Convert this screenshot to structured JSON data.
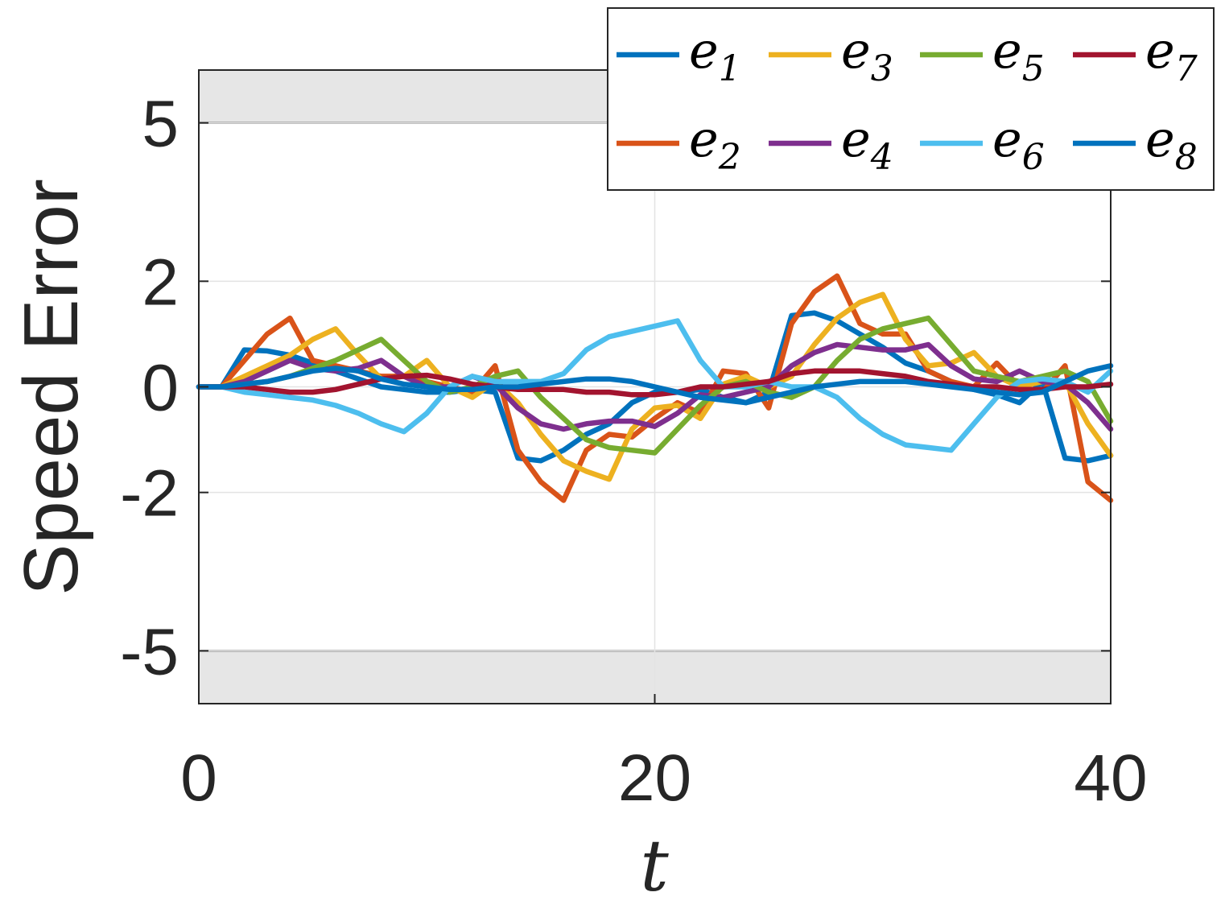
{
  "chart_data": {
    "type": "line",
    "title": "",
    "xlabel": "t",
    "ylabel": "Speed Error",
    "xlim": [
      0,
      40
    ],
    "ylim": [
      -6,
      6
    ],
    "xticks": [
      0,
      20,
      40
    ],
    "yticks": [
      -5,
      -2,
      0,
      2,
      5
    ],
    "ytick_labels": [
      "-5",
      "-2",
      "0",
      "2",
      "5"
    ],
    "grid": true,
    "legend_placement": "top-right",
    "shaded_bands": [
      {
        "from": 5,
        "to": 6,
        "color": "#e6e6e6"
      },
      {
        "from": -6,
        "to": -5,
        "color": "#e6e6e6"
      }
    ],
    "x": [
      0,
      1,
      2,
      3,
      4,
      5,
      6,
      7,
      8,
      9,
      10,
      11,
      12,
      13,
      14,
      15,
      16,
      17,
      18,
      19,
      20,
      21,
      22,
      23,
      24,
      25,
      26,
      27,
      28,
      29,
      30,
      31,
      32,
      33,
      34,
      35,
      36,
      37,
      38,
      39,
      40
    ],
    "series": [
      {
        "name": "e",
        "subscript": "1",
        "color": "#0072BD",
        "values": [
          0,
          0,
          0.7,
          0.68,
          0.6,
          0.45,
          0.3,
          0.15,
          0,
          -0.05,
          -0.1,
          -0.1,
          -0.05,
          -0.1,
          -1.35,
          -1.4,
          -1.2,
          -0.9,
          -0.7,
          -0.3,
          -0.1,
          -0.1,
          -0.05,
          -0.2,
          -0.3,
          -0.1,
          1.35,
          1.4,
          1.25,
          1.0,
          0.75,
          0.45,
          0.3,
          0.1,
          -0.05,
          -0.15,
          -0.3,
          0.1,
          -1.35,
          -1.4,
          -1.3
        ]
      },
      {
        "name": "e",
        "subscript": "2",
        "color": "#D95319",
        "values": [
          0,
          0,
          0.5,
          1.0,
          1.3,
          0.5,
          0.4,
          0.3,
          0.2,
          0.2,
          0.1,
          0,
          -0.1,
          0.4,
          -1.2,
          -1.8,
          -2.15,
          -1.2,
          -0.9,
          -0.95,
          -0.6,
          -0.3,
          -0.5,
          0.3,
          0.25,
          -0.4,
          1.2,
          1.8,
          2.1,
          1.2,
          1.0,
          1.0,
          0.3,
          0.1,
          0,
          0.45,
          0,
          -0.1,
          0.4,
          -1.8,
          -2.15
        ]
      },
      {
        "name": "e",
        "subscript": "3",
        "color": "#EDB120",
        "values": [
          0,
          0,
          0.2,
          0.4,
          0.6,
          0.9,
          1.1,
          0.6,
          0.15,
          0.2,
          0.5,
          0,
          -0.2,
          0.1,
          -0.3,
          -0.9,
          -1.4,
          -1.6,
          -1.75,
          -0.8,
          -0.4,
          -0.35,
          -0.6,
          0.05,
          0.2,
          0,
          0.2,
          0.8,
          1.3,
          1.6,
          1.75,
          0.9,
          0.4,
          0.45,
          0.65,
          0.2,
          0,
          0.1,
          0.1,
          -0.7,
          -1.3
        ]
      },
      {
        "name": "e",
        "subscript": "4",
        "color": "#7E2F8E",
        "values": [
          0,
          0,
          0.1,
          0.3,
          0.5,
          0.35,
          0.3,
          0.35,
          0.5,
          0.2,
          0,
          0,
          0.2,
          0.05,
          -0.4,
          -0.7,
          -0.8,
          -0.7,
          -0.65,
          -0.65,
          -0.75,
          -0.5,
          -0.15,
          -0.2,
          -0.1,
          0,
          0.4,
          0.65,
          0.8,
          0.75,
          0.7,
          0.7,
          0.8,
          0.4,
          0.15,
          0.1,
          0.3,
          0.1,
          0.05,
          -0.3,
          -0.8
        ]
      },
      {
        "name": "e",
        "subscript": "5",
        "color": "#77AC30",
        "values": [
          0,
          0,
          0.05,
          0.1,
          0.2,
          0.35,
          0.5,
          0.7,
          0.9,
          0.5,
          0.1,
          -0.1,
          0,
          0.2,
          0.3,
          -0.2,
          -0.6,
          -1.0,
          -1.15,
          -1.2,
          -1.25,
          -0.8,
          -0.35,
          0,
          0.1,
          -0.1,
          -0.2,
          0,
          0.5,
          0.9,
          1.1,
          1.2,
          1.3,
          0.8,
          0.3,
          0.2,
          0.1,
          0.2,
          0.3,
          0.1,
          -0.65
        ]
      },
      {
        "name": "e",
        "subscript": "6",
        "color": "#4DBEEE",
        "values": [
          0,
          0,
          -0.1,
          -0.15,
          -0.2,
          -0.25,
          -0.35,
          -0.5,
          -0.7,
          -0.85,
          -0.5,
          0,
          0.2,
          0.1,
          0.1,
          0.1,
          0.25,
          0.7,
          0.95,
          1.05,
          1.15,
          1.25,
          0.5,
          0,
          0,
          0.1,
          0,
          0,
          -0.2,
          -0.6,
          -0.9,
          -1.1,
          -1.15,
          -1.2,
          -0.7,
          -0.2,
          0.1,
          0.15,
          0.1,
          -0.1,
          0.3
        ]
      },
      {
        "name": "e",
        "subscript": "7",
        "color": "#A2142F",
        "values": [
          0,
          0,
          0,
          -0.05,
          -0.1,
          -0.1,
          -0.05,
          0.05,
          0.15,
          0.2,
          0.22,
          0.15,
          0.05,
          0,
          -0.05,
          -0.05,
          -0.05,
          -0.1,
          -0.1,
          -0.15,
          -0.15,
          -0.1,
          0,
          0,
          0.05,
          0.1,
          0.25,
          0.3,
          0.3,
          0.3,
          0.25,
          0.2,
          0.1,
          0.05,
          0,
          0,
          -0.05,
          -0.05,
          0,
          0,
          0.05
        ]
      },
      {
        "name": "e",
        "subscript": "8",
        "color": "#0072BD",
        "values": [
          0,
          0,
          0.05,
          0.1,
          0.2,
          0.3,
          0.35,
          0.3,
          0.15,
          0.05,
          0,
          -0.05,
          -0.05,
          0,
          0,
          0.05,
          0.1,
          0.15,
          0.15,
          0.1,
          0,
          -0.1,
          -0.2,
          -0.25,
          -0.3,
          -0.2,
          -0.1,
          0,
          0.05,
          0.1,
          0.1,
          0.1,
          0.05,
          0,
          -0.05,
          -0.1,
          -0.15,
          -0.1,
          0.1,
          0.3,
          0.4
        ]
      }
    ]
  }
}
